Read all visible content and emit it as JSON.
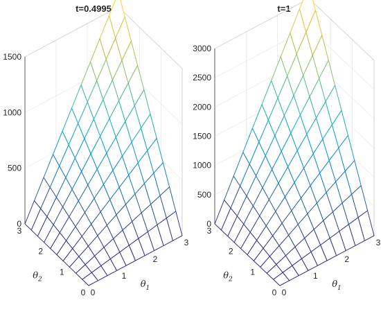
{
  "chart_data": [
    {
      "type": "surface",
      "title": "t=0.4995",
      "xlabel": "θ",
      "xlabel_sub": "1",
      "ylabel": "θ",
      "ylabel_sub": "2",
      "zlabel": "",
      "xlim": [
        0,
        3
      ],
      "ylim": [
        0,
        3
      ],
      "zlim": [
        0,
        1500
      ],
      "xticks": [
        "0",
        "1",
        "2",
        "3"
      ],
      "yticks": [
        "0",
        "1",
        "2",
        "3"
      ],
      "zticks": [
        "0",
        "500",
        "1000",
        "1500"
      ],
      "grid_n": 10,
      "surface_formula": "z = 1630 * (theta1/3) * (theta2/3) on a 10x10 grid over [0,3]x[0,3]",
      "z_max": 1630,
      "colormap": "parula"
    },
    {
      "type": "surface",
      "title": "t=1",
      "xlabel": "θ",
      "xlabel_sub": "1",
      "ylabel": "θ",
      "ylabel_sub": "2",
      "zlabel": "",
      "xlim": [
        0,
        3
      ],
      "ylim": [
        0,
        3
      ],
      "zlim": [
        0,
        3000
      ],
      "xticks": [
        "0",
        "1",
        "2",
        "3"
      ],
      "yticks": [
        "0",
        "1",
        "2",
        "3"
      ],
      "zticks": [
        "0",
        "500",
        "1000",
        "1500",
        "2000",
        "2500",
        "3000"
      ],
      "grid_n": 10,
      "surface_formula": "z = 3230 * (theta1/3) * (theta2/3) on a 10x10 grid over [0,3]x[0,3]",
      "z_max": 3230,
      "colormap": "parula"
    }
  ]
}
